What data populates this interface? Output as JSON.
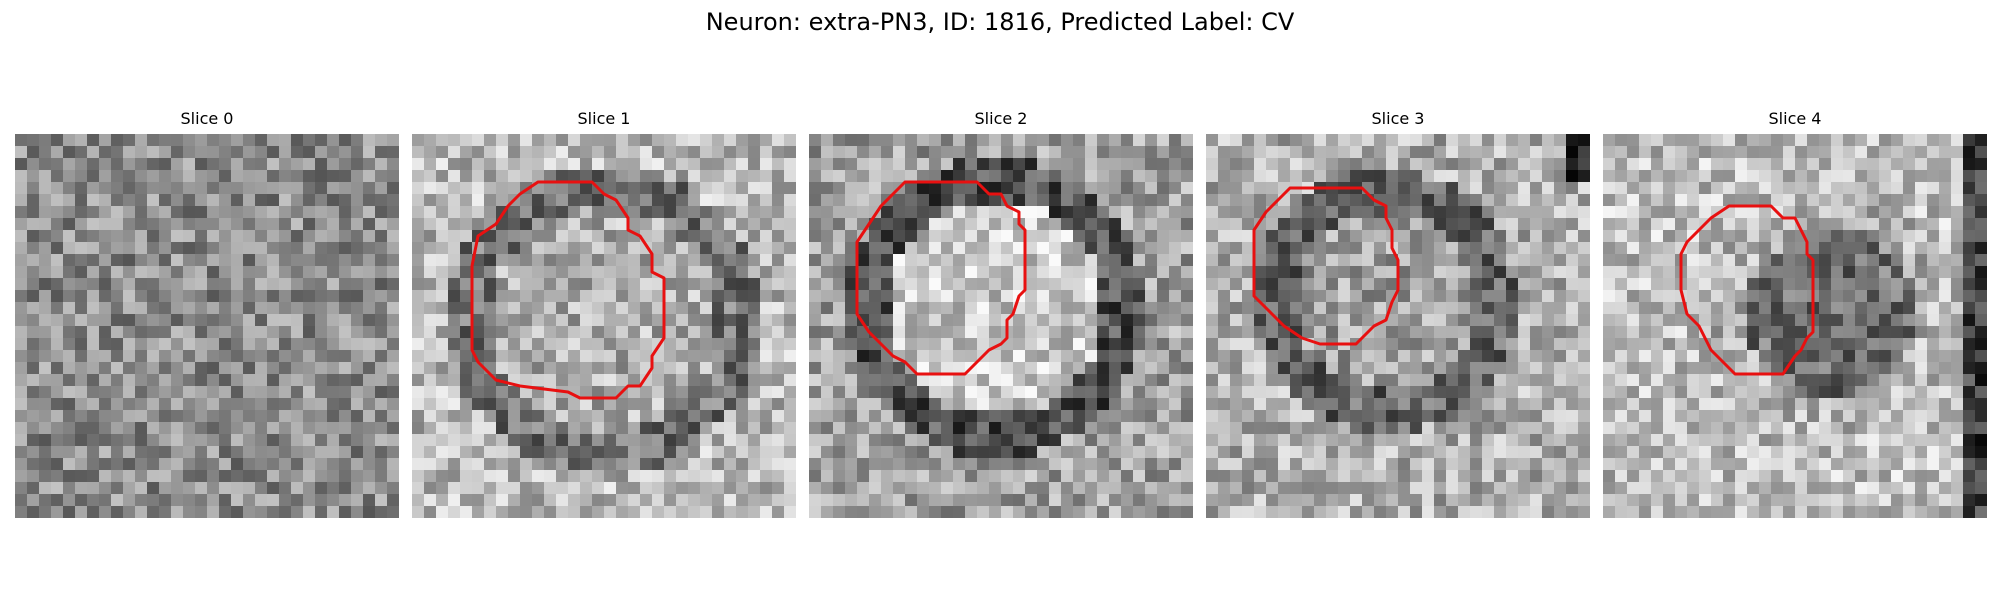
{
  "figure": {
    "title": "Neuron: extra-PN3, ID: 1816, Predicted Label: CV",
    "outline_color": "#e81010",
    "colormap": "gray",
    "panels": [
      {
        "title": "Slice 0",
        "has_outline": false,
        "brightness": "medium-gray texture",
        "seed": 11
      },
      {
        "title": "Slice 1",
        "has_outline": true,
        "brightness": "light round soma with dark ring",
        "seed": 23
      },
      {
        "title": "Slice 2",
        "has_outline": true,
        "brightness": "bright round soma with dark ring",
        "seed": 37
      },
      {
        "title": "Slice 3",
        "has_outline": true,
        "brightness": "gray soma with dark ring",
        "seed": 41
      },
      {
        "title": "Slice 4",
        "has_outline": true,
        "brightness": "darker soma on light background",
        "seed": 53
      }
    ]
  }
}
